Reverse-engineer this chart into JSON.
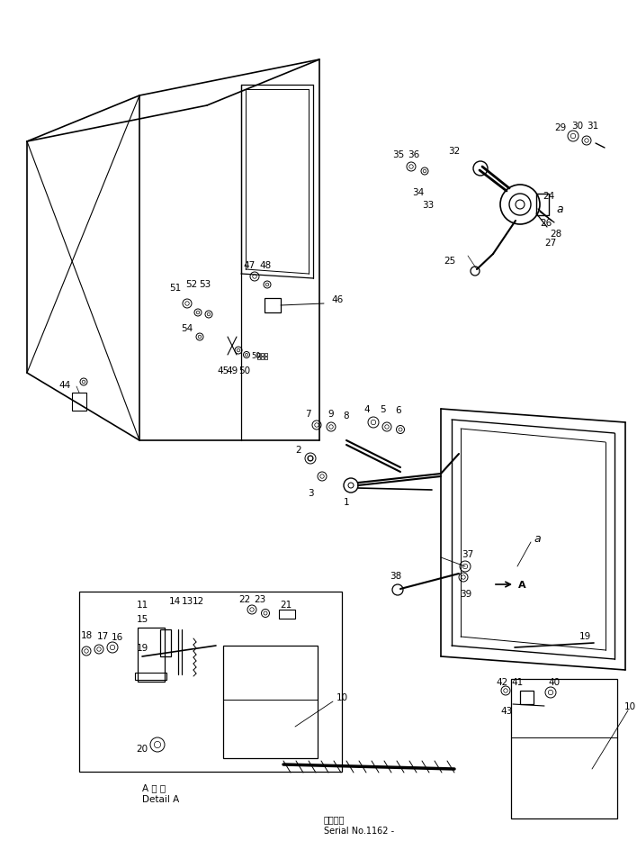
{
  "bg_color": "#ffffff",
  "line_color": "#000000",
  "fig_width": 7.08,
  "fig_height": 9.45,
  "dpi": 100,
  "bottom_text1": "A 詳 細",
  "bottom_text2": "Detail A",
  "serial_text1": "適用号機",
  "serial_text2": "Serial No.1162 -"
}
